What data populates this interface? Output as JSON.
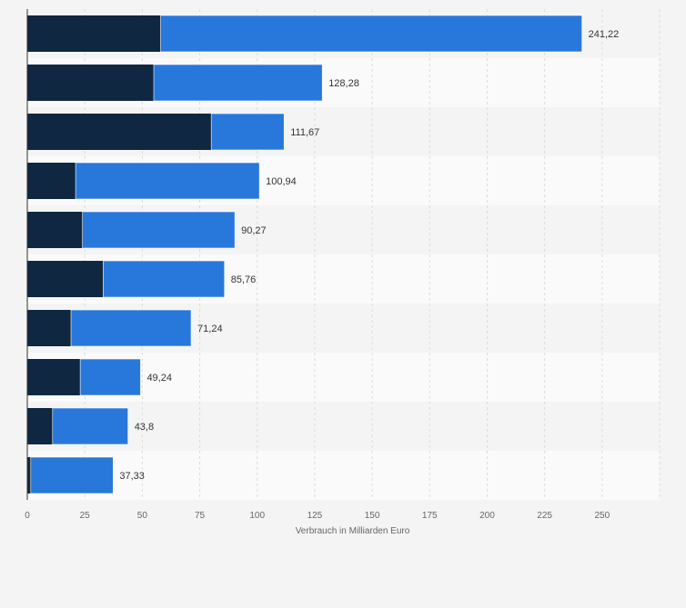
{
  "chart_data": {
    "type": "bar",
    "orientation": "horizontal",
    "stacked": true,
    "xlabel": "Verbrauch in Milliarden Euro",
    "ylabel": "",
    "xlim": [
      0,
      275
    ],
    "x_ticks": [
      0,
      25,
      50,
      75,
      100,
      125,
      150,
      175,
      200,
      225,
      250
    ],
    "categories": [
      "",
      "",
      "",
      "",
      "",
      "",
      "",
      "",
      "",
      ""
    ],
    "series": [
      {
        "color": "#0f2740",
        "values": [
          58,
          55,
          80,
          21,
          24,
          33,
          19,
          23,
          11,
          1.5
        ]
      },
      {
        "color": "#2878dc",
        "values": [
          183.22,
          73.28,
          31.67,
          79.94,
          66.27,
          52.76,
          52.24,
          26.24,
          32.8,
          35.83
        ]
      }
    ],
    "totals": [
      "241,22",
      "128,28",
      "111,67",
      "100,94",
      "90,27",
      "85,76",
      "71,24",
      "49,24",
      "43,8",
      "37,33"
    ],
    "grid": true,
    "legend": "none"
  }
}
